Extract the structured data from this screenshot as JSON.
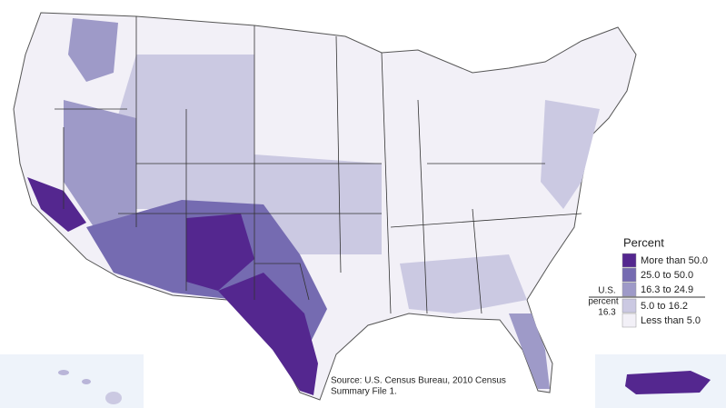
{
  "legend": {
    "title": "Percent",
    "items": [
      {
        "label": "More than 50.0",
        "color": "#54278f"
      },
      {
        "label": "25.0 to 50.0",
        "color": "#756bb1"
      },
      {
        "label": "16.3 to 24.9",
        "color": "#9e9ac8"
      },
      {
        "label": "5.0 to 16.2",
        "color": "#cbc9e2"
      },
      {
        "label": "Less than 5.0",
        "color": "#f2f0f7"
      }
    ],
    "us_note": [
      "U.S.",
      "percent",
      "16.3"
    ]
  },
  "source": [
    "Source:  U.S. Census Bureau, 2010 Census",
    "Summary File 1."
  ]
}
